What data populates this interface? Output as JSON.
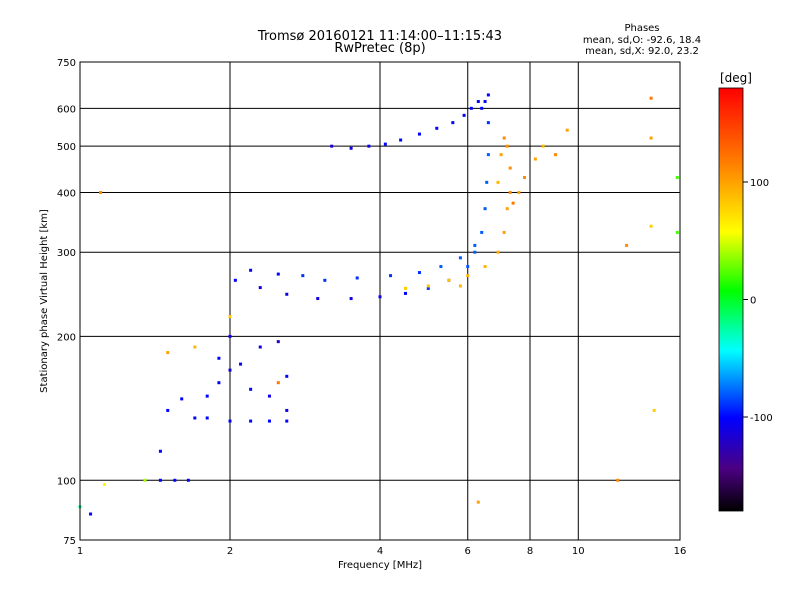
{
  "chart_data": {
    "type": "scatter",
    "title": "Tromsø 20160121 11:14:00–11:15:43",
    "subtitle": "RwPretec (8p)",
    "info": {
      "heading": "Phases",
      "lines": [
        "mean, sd,O: -92.6, 18.4",
        "mean, sd,X:  92.0, 23.2"
      ]
    },
    "xlabel": "Frequency [MHz]",
    "ylabel": "Stationary phase Virtual Height [km]",
    "xscale": "log",
    "yscale": "log",
    "xlim": [
      1,
      16
    ],
    "ylim": [
      75,
      750
    ],
    "xticks": [
      1,
      2,
      4,
      6,
      8,
      10,
      16
    ],
    "xtick_labels": [
      "1",
      "2",
      "4",
      "6",
      "8",
      "10",
      "16"
    ],
    "yticks": [
      75,
      100,
      200,
      300,
      400,
      500,
      600,
      750
    ],
    "ytick_labels": [
      "75",
      "100",
      "200",
      "300",
      "400",
      "500",
      "600",
      "750"
    ],
    "grid": true,
    "colorbar": {
      "unit": "[deg]",
      "min": -180,
      "max": 180,
      "ticks": [
        100,
        0,
        -100
      ],
      "tick_labels": [
        "100",
        "0",
        "-100"
      ],
      "colormap": "rainbow"
    },
    "series": [
      {
        "x": [
          1.0,
          1.05,
          1.12,
          1.35,
          1.45,
          1.55,
          1.65,
          1.45,
          1.5,
          1.6,
          1.7,
          1.8,
          2.0,
          2.2,
          2.4,
          2.6,
          1.8,
          1.9,
          2.0,
          2.1,
          2.3,
          2.5,
          2.6,
          1.9,
          2.0,
          2.2,
          2.4,
          2.6,
          2.05,
          2.3,
          2.6,
          3.0,
          3.5,
          4.0,
          4.5,
          5.0,
          5.5,
          6.0,
          6.2,
          6.4,
          6.5,
          6.55,
          6.6,
          6.6,
          6.6,
          6.5,
          6.4,
          3.2,
          3.5,
          3.8,
          4.1,
          4.4,
          4.8,
          5.2,
          5.6,
          5.9,
          6.1,
          6.3,
          2.2,
          2.5,
          2.8,
          3.1,
          3.6,
          4.2,
          4.8,
          5.3,
          5.8,
          6.2
        ],
        "y": [
          88,
          85,
          98,
          100,
          100,
          100,
          100,
          115,
          140,
          148,
          135,
          135,
          133,
          133,
          133,
          133,
          150,
          180,
          200,
          175,
          190,
          195,
          165,
          160,
          170,
          155,
          150,
          140,
          262,
          253,
          245,
          240,
          240,
          242,
          246,
          252,
          262,
          280,
          300,
          330,
          370,
          420,
          480,
          560,
          640,
          620,
          600,
          500,
          495,
          500,
          505,
          515,
          530,
          545,
          560,
          580,
          600,
          620,
          275,
          270,
          268,
          262,
          265,
          268,
          272,
          280,
          292,
          310
        ],
        "phase": [
          -20,
          -100,
          60,
          40,
          -100,
          -100,
          -100,
          -100,
          -100,
          -100,
          -100,
          -100,
          -100,
          -100,
          -100,
          -100,
          -100,
          -100,
          -110,
          -110,
          -110,
          -120,
          -100,
          -100,
          -110,
          -100,
          -110,
          -110,
          -100,
          -110,
          -110,
          -110,
          -110,
          -110,
          -100,
          -90,
          -90,
          -80,
          -80,
          -80,
          -80,
          -80,
          -80,
          -90,
          -100,
          -100,
          -100,
          -120,
          -110,
          -110,
          -100,
          -100,
          -100,
          -100,
          -100,
          -100,
          -100,
          -100,
          -100,
          -100,
          -90,
          -90,
          -90,
          -90,
          -90,
          -80,
          -80,
          -80
        ]
      },
      {
        "x": [
          4.5,
          5.0,
          5.5,
          6.0,
          6.5,
          6.9,
          7.1,
          7.2,
          7.3,
          7.3,
          7.2,
          7.1,
          7.0,
          6.9,
          7.4,
          7.6,
          7.8,
          8.2,
          8.5,
          9.0,
          9.5,
          12.5,
          14.0,
          14.0,
          14.0,
          14.2,
          15.8,
          15.8,
          6.3,
          1.1,
          1.5,
          1.7,
          2.0,
          2.5,
          5.8,
          12.0
        ],
        "y": [
          252,
          255,
          262,
          268,
          280,
          300,
          330,
          370,
          400,
          450,
          500,
          520,
          480,
          420,
          380,
          400,
          430,
          470,
          500,
          480,
          540,
          310,
          630,
          520,
          340,
          140,
          330,
          430,
          90,
          400,
          185,
          190,
          220,
          160,
          255,
          100
        ],
        "phase": [
          80,
          85,
          85,
          90,
          90,
          95,
          100,
          100,
          110,
          110,
          110,
          110,
          100,
          90,
          120,
          100,
          110,
          100,
          90,
          110,
          100,
          110,
          120,
          100,
          80,
          80,
          20,
          20,
          100,
          110,
          100,
          90,
          80,
          120,
          90,
          110
        ]
      }
    ]
  }
}
